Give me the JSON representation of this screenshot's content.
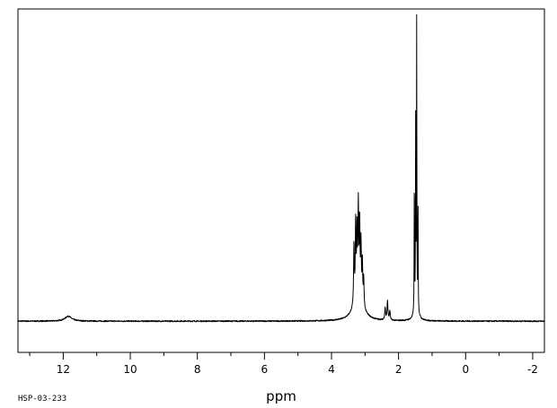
{
  "chart_data": {
    "type": "line",
    "title": "",
    "xlabel": "ppm",
    "ylabel": "",
    "xlim": [
      13.35,
      -2.35
    ],
    "ylim": [
      -0.1,
      1.0
    ],
    "x_reversed": true,
    "grid": false,
    "legend": "none",
    "major_ticks": [
      12,
      10,
      8,
      6,
      4,
      2,
      0,
      -2
    ],
    "tick_labels": [
      "12",
      "10",
      "8",
      "6",
      "4",
      "2",
      "0",
      "-2"
    ],
    "minor_ticks": [
      13,
      11,
      9,
      7,
      5,
      3,
      1,
      -1
    ],
    "sample_id": "HSP-03-233",
    "line_color": "#000000",
    "series": [
      {
        "baseline": 0,
        "noise": 0.004,
        "peaks": [
          {
            "ppm": 11.85,
            "height": 0.016,
            "width": 0.12
          },
          {
            "ppm": 3.33,
            "height": 0.19,
            "width": 0.012
          },
          {
            "ppm": 3.28,
            "height": 0.24,
            "width": 0.012
          },
          {
            "ppm": 3.24,
            "height": 0.2,
            "width": 0.012
          },
          {
            "ppm": 3.2,
            "height": 0.275,
            "width": 0.012
          },
          {
            "ppm": 3.16,
            "height": 0.23,
            "width": 0.012
          },
          {
            "ppm": 3.12,
            "height": 0.17,
            "width": 0.012
          },
          {
            "ppm": 3.08,
            "height": 0.13,
            "width": 0.012
          },
          {
            "ppm": 3.04,
            "height": 0.09,
            "width": 0.012
          },
          {
            "ppm": 3.2,
            "height": 0.09,
            "width": 0.15
          },
          {
            "ppm": 2.4,
            "height": 0.04,
            "width": 0.015
          },
          {
            "ppm": 2.33,
            "height": 0.06,
            "width": 0.015
          },
          {
            "ppm": 2.26,
            "height": 0.03,
            "width": 0.015
          },
          {
            "ppm": 1.53,
            "height": 0.45,
            "width": 0.006
          },
          {
            "ppm": 1.49,
            "height": 0.6,
            "width": 0.006
          },
          {
            "ppm": 1.46,
            "height": 0.92,
            "width": 0.006
          },
          {
            "ppm": 1.42,
            "height": 0.36,
            "width": 0.006
          },
          {
            "ppm": 1.47,
            "height": 0.03,
            "width": 0.08
          }
        ]
      }
    ]
  }
}
